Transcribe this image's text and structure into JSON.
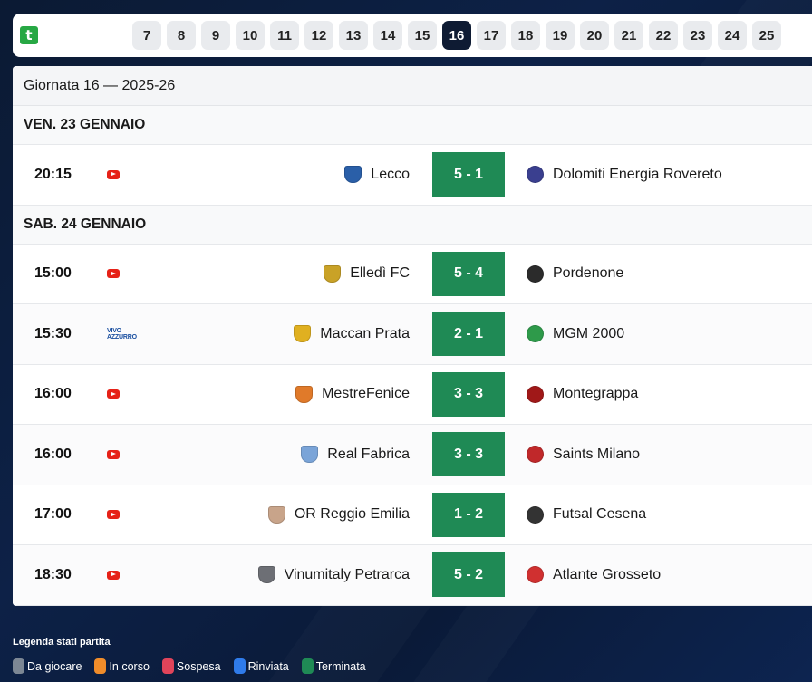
{
  "logo": {
    "letter": "t",
    "color": "#27a844"
  },
  "rounds": {
    "items": [
      "7",
      "8",
      "9",
      "10",
      "11",
      "12",
      "13",
      "14",
      "15",
      "16",
      "17",
      "18",
      "19",
      "20",
      "21",
      "22",
      "23",
      "24",
      "25"
    ],
    "active": "16"
  },
  "schedule": {
    "title": "Giornata 16 — 2025-26",
    "days": [
      {
        "label": "VEN. 23 GENNAIO",
        "matches": [
          {
            "time": "20:15",
            "broadcaster": "youtube-icon",
            "home": "Lecco",
            "home_color": "#2a5fa8",
            "score": "5 - 1",
            "away": "Dolomiti Energia Rovereto",
            "away_color": "#3a3f8f"
          }
        ]
      },
      {
        "label": "SAB. 24 GENNAIO",
        "matches": [
          {
            "time": "15:00",
            "broadcaster": "youtube-icon",
            "home": "Elledì FC",
            "home_color": "#c9a227",
            "score": "5 - 4",
            "away": "Pordenone",
            "away_color": "#2b2b2b"
          },
          {
            "time": "15:30",
            "broadcaster": "vivo-azzurro-logo",
            "home": "Maccan Prata",
            "home_color": "#e0b020",
            "score": "2 - 1",
            "away": "MGM 2000",
            "away_color": "#2e9a4a"
          },
          {
            "time": "16:00",
            "broadcaster": "youtube-icon",
            "home": "MestreFenice",
            "home_color": "#e07a2a",
            "score": "3 - 3",
            "away": "Montegrappa",
            "away_color": "#a01818"
          },
          {
            "time": "16:00",
            "broadcaster": "youtube-icon",
            "home": "Real Fabrica",
            "home_color": "#7aa4d8",
            "score": "3 - 3",
            "away": "Saints Milano",
            "away_color": "#c0282a"
          },
          {
            "time": "17:00",
            "broadcaster": "youtube-icon",
            "home": "OR Reggio Emilia",
            "home_color": "#c8a48a",
            "score": "1 - 2",
            "away": "Futsal Cesena",
            "away_color": "#333333"
          },
          {
            "time": "18:30",
            "broadcaster": "youtube-icon",
            "home": "Vinumitaly Petrarca",
            "home_color": "#6d6f75",
            "score": "5 - 2",
            "away": "Atlante Grosseto",
            "away_color": "#d03030"
          }
        ]
      }
    ]
  },
  "legend": {
    "title": "Legenda stati partita",
    "items": [
      {
        "label": "Da giocare",
        "color": "#7c8794"
      },
      {
        "label": "In corso",
        "color": "#f08c2a"
      },
      {
        "label": "Sospesa",
        "color": "#e0445a"
      },
      {
        "label": "Rinviata",
        "color": "#2f7bea"
      },
      {
        "label": "Terminata",
        "color": "#1f8a55"
      }
    ]
  }
}
